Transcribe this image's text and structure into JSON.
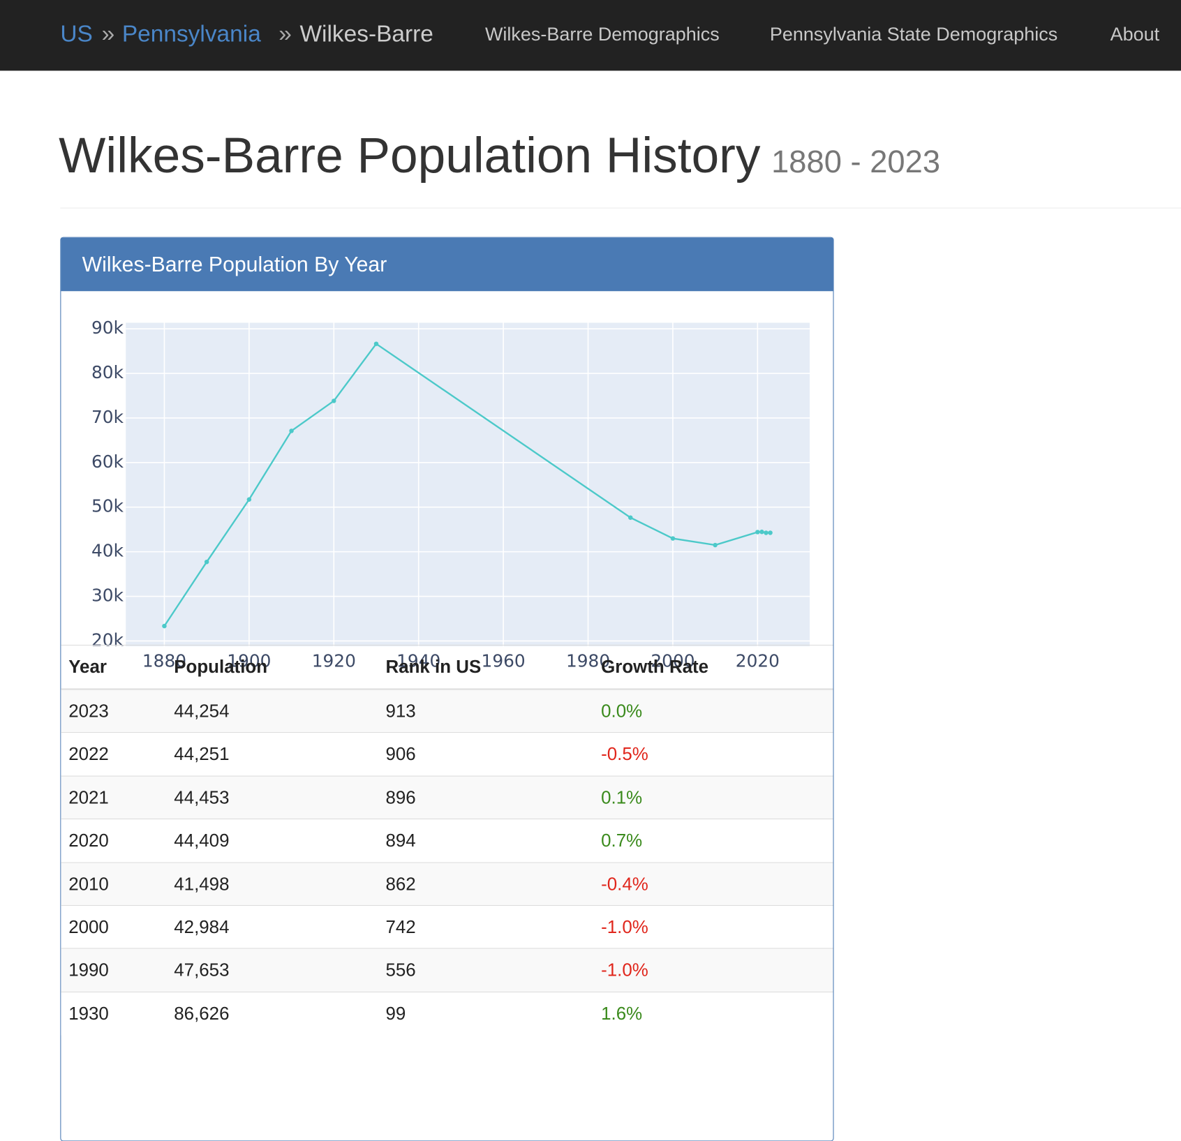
{
  "nav": {
    "breadcrumb": [
      "US",
      "Pennsylvania",
      "Wilkes-Barre"
    ],
    "separator": "»",
    "links": [
      "Wilkes-Barre Demographics",
      "Pennsylvania State Demographics",
      "About"
    ]
  },
  "header": {
    "title": "Wilkes-Barre Population History",
    "subtitle": "1880 - 2023"
  },
  "panel": {
    "title": "Wilkes-Barre Population By Year"
  },
  "chart_data": {
    "type": "line",
    "x": [
      1880,
      1890,
      1900,
      1910,
      1920,
      1930,
      1990,
      2000,
      2010,
      2020,
      2021,
      2022,
      2023
    ],
    "series": [
      {
        "name": "Population",
        "color": "#4cc9c9",
        "values": [
          23339,
          37718,
          51721,
          67105,
          73833,
          86626,
          47653,
          42984,
          41498,
          44409,
          44453,
          44251,
          44254
        ]
      }
    ],
    "xlim": [
      1870.9,
      2032.3
    ],
    "xticks": [
      1880,
      1900,
      1920,
      1940,
      1960,
      1980,
      2000,
      2020
    ],
    "ylim": [
      18800,
      91350
    ],
    "yticks": [
      {
        "value": 20000,
        "label": "20k"
      },
      {
        "value": 30000,
        "label": "30k"
      },
      {
        "value": 40000,
        "label": "40k"
      },
      {
        "value": 50000,
        "label": "50k"
      },
      {
        "value": 60000,
        "label": "60k"
      },
      {
        "value": 70000,
        "label": "70k"
      },
      {
        "value": 80000,
        "label": "80k"
      },
      {
        "value": 90000,
        "label": "90k"
      }
    ],
    "grid": true
  },
  "table": {
    "columns": [
      "Year",
      "Population",
      "Rank in US",
      "Growth Rate"
    ],
    "rows": [
      [
        "2023",
        "44,254",
        "913",
        "0.0%"
      ],
      [
        "2022",
        "44,251",
        "906",
        "-0.5%"
      ],
      [
        "2021",
        "44,453",
        "896",
        "0.1%"
      ],
      [
        "2020",
        "44,409",
        "894",
        "0.7%"
      ],
      [
        "2010",
        "41,498",
        "862",
        "-0.4%"
      ],
      [
        "2000",
        "42,984",
        "742",
        "-1.0%"
      ],
      [
        "1990",
        "47,653",
        "556",
        "-1.0%"
      ],
      [
        "1930",
        "86,626",
        "99",
        "1.6%"
      ]
    ]
  }
}
